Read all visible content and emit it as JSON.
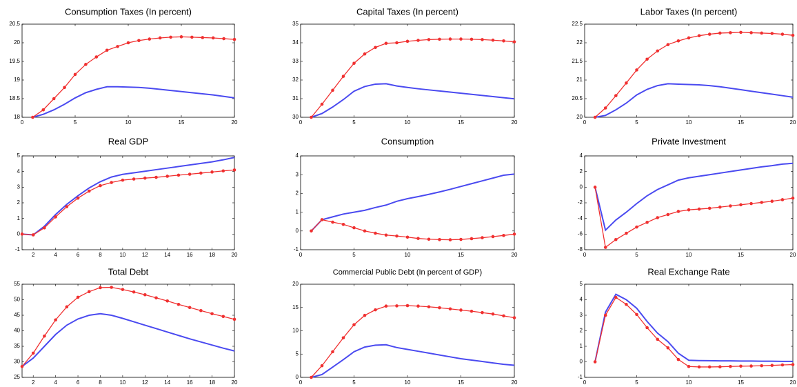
{
  "chart_data": [
    {
      "type": "line",
      "title": "Consumption Taxes (In percent)",
      "x": [
        1,
        2,
        3,
        4,
        5,
        6,
        7,
        8,
        9,
        10,
        11,
        12,
        13,
        14,
        15,
        16,
        17,
        18,
        19,
        20
      ],
      "xlim": [
        0,
        20
      ],
      "xticks": [
        0,
        5,
        10,
        15,
        20
      ],
      "ylim": [
        18,
        20.5
      ],
      "yticks": [
        18,
        18.5,
        19,
        19.5,
        20,
        20.5
      ],
      "series": [
        {
          "color": "#4a4af0",
          "values": [
            18.0,
            18.08,
            18.2,
            18.35,
            18.52,
            18.66,
            18.75,
            18.82,
            18.82,
            18.81,
            18.8,
            18.78,
            18.75,
            18.72,
            18.69,
            18.66,
            18.63,
            18.6,
            18.56,
            18.52
          ]
        },
        {
          "color": "#f03030",
          "markers": true,
          "values": [
            18.0,
            18.2,
            18.5,
            18.8,
            19.15,
            19.42,
            19.62,
            19.8,
            19.9,
            20.0,
            20.06,
            20.1,
            20.13,
            20.15,
            20.16,
            20.15,
            20.14,
            20.13,
            20.11,
            20.09
          ]
        }
      ]
    },
    {
      "type": "line",
      "title": "Capital Taxes (In percent)",
      "x": [
        1,
        2,
        3,
        4,
        5,
        6,
        7,
        8,
        9,
        10,
        11,
        12,
        13,
        14,
        15,
        16,
        17,
        18,
        19,
        20
      ],
      "xlim": [
        0,
        20
      ],
      "xticks": [
        0,
        5,
        10,
        15,
        20
      ],
      "ylim": [
        30,
        35
      ],
      "yticks": [
        30,
        31,
        32,
        33,
        34,
        35
      ],
      "series": [
        {
          "color": "#4a4af0",
          "values": [
            30,
            30.2,
            30.55,
            30.95,
            31.4,
            31.65,
            31.78,
            31.8,
            31.68,
            31.6,
            31.53,
            31.47,
            31.41,
            31.35,
            31.29,
            31.23,
            31.17,
            31.11,
            31.05,
            30.99
          ]
        },
        {
          "color": "#f03030",
          "markers": true,
          "values": [
            30,
            30.7,
            31.45,
            32.2,
            32.9,
            33.4,
            33.75,
            33.97,
            34.0,
            34.08,
            34.13,
            34.17,
            34.19,
            34.2,
            34.2,
            34.19,
            34.17,
            34.14,
            34.1,
            34.05
          ]
        }
      ]
    },
    {
      "type": "line",
      "title": "Labor Taxes (In percent)",
      "x": [
        1,
        2,
        3,
        4,
        5,
        6,
        7,
        8,
        9,
        10,
        11,
        12,
        13,
        14,
        15,
        16,
        17,
        18,
        19,
        20
      ],
      "xlim": [
        0,
        20
      ],
      "xticks": [
        0,
        5,
        10,
        15,
        20
      ],
      "ylim": [
        20,
        22.5
      ],
      "yticks": [
        20,
        20.5,
        21,
        21.5,
        22,
        22.5
      ],
      "series": [
        {
          "color": "#4a4af0",
          "values": [
            20,
            20.05,
            20.2,
            20.38,
            20.6,
            20.75,
            20.85,
            20.9,
            20.89,
            20.88,
            20.87,
            20.85,
            20.82,
            20.78,
            20.74,
            20.7,
            20.66,
            20.62,
            20.58,
            20.54
          ]
        },
        {
          "color": "#f03030",
          "markers": true,
          "values": [
            20,
            20.25,
            20.58,
            20.92,
            21.27,
            21.56,
            21.78,
            21.95,
            22.05,
            22.13,
            22.19,
            22.23,
            22.26,
            22.27,
            22.28,
            22.27,
            22.26,
            22.25,
            22.23,
            22.2
          ]
        }
      ]
    },
    {
      "type": "line",
      "title": "Real GDP",
      "x": [
        1,
        2,
        3,
        4,
        5,
        6,
        7,
        8,
        9,
        10,
        11,
        12,
        13,
        14,
        15,
        16,
        17,
        18,
        19,
        20
      ],
      "xlim": [
        1,
        20
      ],
      "xticks": [
        2,
        4,
        6,
        8,
        10,
        12,
        14,
        16,
        18,
        20
      ],
      "ylim": [
        -1,
        5
      ],
      "yticks": [
        -1,
        0,
        1,
        2,
        3,
        4,
        5
      ],
      "series": [
        {
          "color": "#4a4af0",
          "values": [
            0,
            -0.05,
            0.5,
            1.25,
            1.9,
            2.45,
            2.95,
            3.35,
            3.65,
            3.82,
            3.92,
            4.02,
            4.12,
            4.22,
            4.32,
            4.42,
            4.52,
            4.62,
            4.75,
            4.9
          ]
        },
        {
          "color": "#f03030",
          "markers": true,
          "values": [
            0,
            -0.05,
            0.4,
            1.1,
            1.75,
            2.3,
            2.75,
            3.1,
            3.3,
            3.45,
            3.52,
            3.58,
            3.63,
            3.7,
            3.77,
            3.83,
            3.9,
            3.97,
            4.04,
            4.1
          ]
        }
      ]
    },
    {
      "type": "line",
      "title": "Consumption",
      "x": [
        1,
        2,
        3,
        4,
        5,
        6,
        7,
        8,
        9,
        10,
        11,
        12,
        13,
        14,
        15,
        16,
        17,
        18,
        19,
        20
      ],
      "xlim": [
        0,
        20
      ],
      "xticks": [
        0,
        5,
        10,
        15,
        20
      ],
      "ylim": [
        -1,
        4
      ],
      "yticks": [
        -1,
        0,
        1,
        2,
        3,
        4
      ],
      "series": [
        {
          "color": "#4a4af0",
          "values": [
            0,
            0.6,
            0.75,
            0.9,
            1.0,
            1.1,
            1.25,
            1.38,
            1.58,
            1.72,
            1.83,
            1.95,
            2.08,
            2.22,
            2.37,
            2.52,
            2.67,
            2.82,
            2.97,
            3.03
          ]
        },
        {
          "color": "#f03030",
          "markers": true,
          "values": [
            0,
            0.6,
            0.47,
            0.35,
            0.17,
            0,
            -0.12,
            -0.22,
            -0.27,
            -0.33,
            -0.4,
            -0.44,
            -0.46,
            -0.47,
            -0.45,
            -0.41,
            -0.36,
            -0.3,
            -0.24,
            -0.17
          ]
        }
      ]
    },
    {
      "type": "line",
      "title": "Private Investment",
      "x": [
        1,
        2,
        3,
        4,
        5,
        6,
        7,
        8,
        9,
        10,
        11,
        12,
        13,
        14,
        15,
        16,
        17,
        18,
        19,
        20
      ],
      "xlim": [
        0,
        20
      ],
      "xticks": [
        0,
        5,
        10,
        15,
        20
      ],
      "ylim": [
        -8,
        4
      ],
      "yticks": [
        -8,
        -6,
        -4,
        -2,
        0,
        2,
        4
      ],
      "series": [
        {
          "color": "#4a4af0",
          "values": [
            0,
            -5.5,
            -4.2,
            -3.2,
            -2.1,
            -1.1,
            -0.3,
            0.3,
            0.9,
            1.2,
            1.4,
            1.6,
            1.8,
            2.0,
            2.2,
            2.4,
            2.6,
            2.75,
            2.95,
            3.05
          ]
        },
        {
          "color": "#f03030",
          "markers": true,
          "values": [
            0,
            -7.7,
            -6.7,
            -5.9,
            -5.1,
            -4.5,
            -3.9,
            -3.5,
            -3.1,
            -2.9,
            -2.8,
            -2.7,
            -2.55,
            -2.4,
            -2.25,
            -2.1,
            -1.95,
            -1.8,
            -1.6,
            -1.4
          ]
        }
      ]
    },
    {
      "type": "line",
      "title": "Total Debt",
      "x": [
        1,
        2,
        3,
        4,
        5,
        6,
        7,
        8,
        9,
        10,
        11,
        12,
        13,
        14,
        15,
        16,
        17,
        18,
        19,
        20
      ],
      "xlim": [
        1,
        20
      ],
      "xticks": [
        2,
        4,
        6,
        8,
        10,
        12,
        14,
        16,
        18,
        20
      ],
      "ylim": [
        25,
        55
      ],
      "yticks": [
        25,
        30,
        35,
        40,
        45,
        50,
        55
      ],
      "series": [
        {
          "color": "#4a4af0",
          "values": [
            28.5,
            31.2,
            35.0,
            38.8,
            41.8,
            43.8,
            45.0,
            45.5,
            45.0,
            44.0,
            42.9,
            41.8,
            40.7,
            39.6,
            38.5,
            37.4,
            36.4,
            35.4,
            34.4,
            33.5
          ]
        },
        {
          "color": "#f03030",
          "markers": true,
          "values": [
            28.5,
            32.8,
            38.3,
            43.5,
            47.7,
            50.8,
            52.6,
            53.9,
            54.0,
            53.3,
            52.5,
            51.6,
            50.6,
            49.6,
            48.5,
            47.5,
            46.5,
            45.5,
            44.6,
            43.7
          ]
        }
      ]
    },
    {
      "type": "line",
      "title": "Commercial Public Debt (In percent of GDP)",
      "small_title": true,
      "x": [
        1,
        2,
        3,
        4,
        5,
        6,
        7,
        8,
        9,
        10,
        11,
        12,
        13,
        14,
        15,
        16,
        17,
        18,
        19,
        20
      ],
      "xlim": [
        0,
        20
      ],
      "xticks": [
        0,
        5,
        10,
        15,
        20
      ],
      "ylim": [
        0,
        20
      ],
      "yticks": [
        0,
        5,
        10,
        15,
        20
      ],
      "series": [
        {
          "color": "#4a4af0",
          "values": [
            0,
            0.6,
            2.2,
            3.8,
            5.5,
            6.5,
            6.9,
            7.0,
            6.4,
            6.0,
            5.6,
            5.2,
            4.8,
            4.4,
            4.0,
            3.7,
            3.4,
            3.1,
            2.8,
            2.6
          ]
        },
        {
          "color": "#f03030",
          "markers": true,
          "values": [
            0,
            2.5,
            5.5,
            8.5,
            11.3,
            13.3,
            14.5,
            15.3,
            15.35,
            15.4,
            15.3,
            15.15,
            14.95,
            14.7,
            14.45,
            14.2,
            13.9,
            13.6,
            13.2,
            12.8
          ]
        }
      ]
    },
    {
      "type": "line",
      "title": "Real Exchange Rate",
      "x": [
        1,
        2,
        3,
        4,
        5,
        6,
        7,
        8,
        9,
        10,
        11,
        12,
        13,
        14,
        15,
        16,
        17,
        18,
        19,
        20
      ],
      "xlim": [
        0,
        20
      ],
      "xticks": [
        0,
        5,
        10,
        15,
        20
      ],
      "ylim": [
        -1,
        5
      ],
      "yticks": [
        -1,
        0,
        1,
        2,
        3,
        4,
        5
      ],
      "series": [
        {
          "color": "#4a4af0",
          "values": [
            0,
            3.2,
            4.35,
            4.0,
            3.45,
            2.6,
            1.85,
            1.3,
            0.55,
            0.1,
            0.08,
            0.07,
            0.06,
            0.06,
            0.05,
            0.05,
            0.04,
            0.04,
            0.03,
            0.03
          ]
        },
        {
          "color": "#f03030",
          "markers": true,
          "values": [
            0,
            3.0,
            4.15,
            3.7,
            3.05,
            2.2,
            1.45,
            0.9,
            0.15,
            -0.3,
            -0.33,
            -0.33,
            -0.32,
            -0.3,
            -0.28,
            -0.27,
            -0.25,
            -0.23,
            -0.2,
            -0.18
          ]
        }
      ]
    }
  ]
}
